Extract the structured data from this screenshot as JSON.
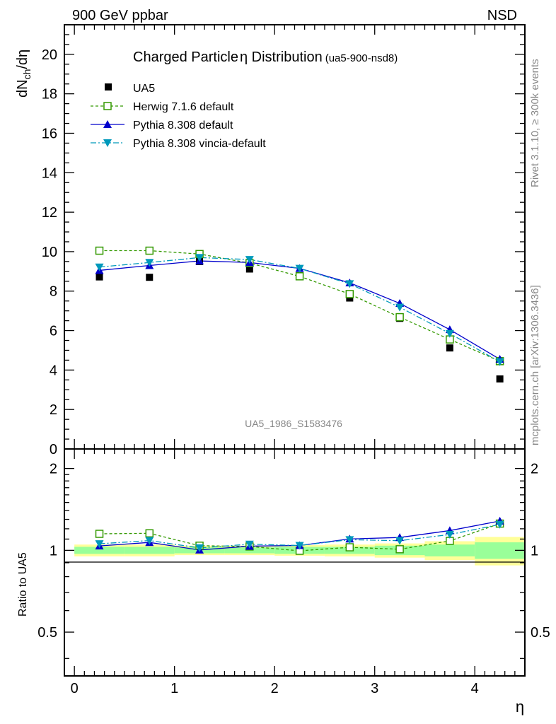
{
  "header": {
    "left": "900 GeV ppbar",
    "right": "NSD"
  },
  "side_labels": {
    "rivet": "Rivet 3.1.10, ≥ 300k events",
    "mcplots": "mcplots.cern.ch [arXiv:1306.3436]"
  },
  "chart_data": [
    {
      "type": "scatter",
      "title": "Charged Particle",
      "title_symbol": "η",
      "title_suffix": " Distribution",
      "subtitle": "(ua5-900-nsd8)",
      "ylabel_main": "dN",
      "ylabel_sub": "ch",
      "ylabel_tail": "/dη",
      "watermark": "UA5_1986_S1583476",
      "xlabel": "η",
      "xlim": [
        -0.1,
        4.5
      ],
      "ylim": [
        0,
        21.5
      ],
      "xticks": [
        0,
        1,
        2,
        3,
        4
      ],
      "yticks": [
        0,
        2,
        4,
        6,
        8,
        10,
        12,
        14,
        16,
        18,
        20
      ],
      "ytick_labels": [
        "0",
        "2",
        "4",
        "6",
        "8",
        "10",
        "12",
        "14",
        "16",
        "18",
        "20"
      ],
      "legend_position": "top-left",
      "x": [
        0.25,
        0.75,
        1.25,
        1.75,
        2.25,
        2.75,
        3.25,
        3.75,
        4.25
      ],
      "series": [
        {
          "name": "UA5",
          "style": "data",
          "color": "#000000",
          "marker": "square-filled",
          "values": [
            8.72,
            8.7,
            9.5,
            9.12,
            8.78,
            7.65,
            6.62,
            5.12,
            3.55
          ]
        },
        {
          "name": "Herwig 7.1.6 default",
          "style": "dashed",
          "color": "#339900",
          "marker": "square-open",
          "values": [
            10.05,
            10.05,
            9.88,
            9.42,
            8.75,
            7.85,
            6.68,
            5.55,
            4.45
          ]
        },
        {
          "name": "Pythia 8.308 default",
          "style": "solid",
          "color": "#0000cc",
          "marker": "triangle-up",
          "values": [
            9.05,
            9.3,
            9.53,
            9.45,
            9.15,
            8.42,
            7.38,
            6.05,
            4.55
          ]
        },
        {
          "name": "Pythia 8.308 vincia-default",
          "style": "dashdot",
          "color": "#0099bb",
          "marker": "triangle-down",
          "values": [
            9.22,
            9.45,
            9.7,
            9.6,
            9.15,
            8.37,
            7.18,
            5.85,
            4.42
          ]
        }
      ]
    },
    {
      "type": "scatter",
      "ylabel": "Ratio to UA5",
      "xlabel": "η",
      "xlim": [
        -0.1,
        4.5
      ],
      "ylim": [
        0.345,
        2.36
      ],
      "yscale": "log",
      "xticks": [
        0,
        1,
        2,
        3,
        4
      ],
      "xtick_labels": [
        "0",
        "1",
        "2",
        "3",
        "4"
      ],
      "yticks": [
        0.5,
        1,
        2
      ],
      "ytick_labels": [
        "0.5",
        "1",
        "2"
      ],
      "bands": {
        "x_edges": [
          0,
          0.5,
          1.0,
          1.5,
          2.0,
          2.5,
          3.0,
          3.5,
          4.0,
          4.5
        ],
        "yellow_half_width": [
          0.05,
          0.05,
          0.04,
          0.04,
          0.045,
          0.05,
          0.06,
          0.08,
          0.12
        ],
        "green_half_width": [
          0.03,
          0.03,
          0.025,
          0.025,
          0.03,
          0.03,
          0.04,
          0.05,
          0.07
        ],
        "yellow_color": "#ffff99",
        "green_color": "#99ff99"
      },
      "x": [
        0.25,
        0.75,
        1.25,
        1.75,
        2.25,
        2.75,
        3.25,
        3.75,
        4.25
      ],
      "series": [
        {
          "name": "Herwig 7.1.6 default",
          "style": "dashed",
          "color": "#339900",
          "marker": "square-open",
          "values": [
            1.15,
            1.155,
            1.04,
            1.033,
            0.996,
            1.026,
            1.009,
            1.083,
            1.254
          ]
        },
        {
          "name": "Pythia 8.308 default",
          "style": "solid",
          "color": "#0000cc",
          "marker": "triangle-up",
          "values": [
            1.038,
            1.069,
            1.003,
            1.036,
            1.042,
            1.101,
            1.115,
            1.182,
            1.282
          ]
        },
        {
          "name": "Pythia 8.308 vincia-default",
          "style": "dashdot",
          "color": "#0099bb",
          "marker": "triangle-down",
          "values": [
            1.057,
            1.086,
            1.021,
            1.053,
            1.042,
            1.094,
            1.085,
            1.143,
            1.245
          ]
        }
      ]
    }
  ]
}
